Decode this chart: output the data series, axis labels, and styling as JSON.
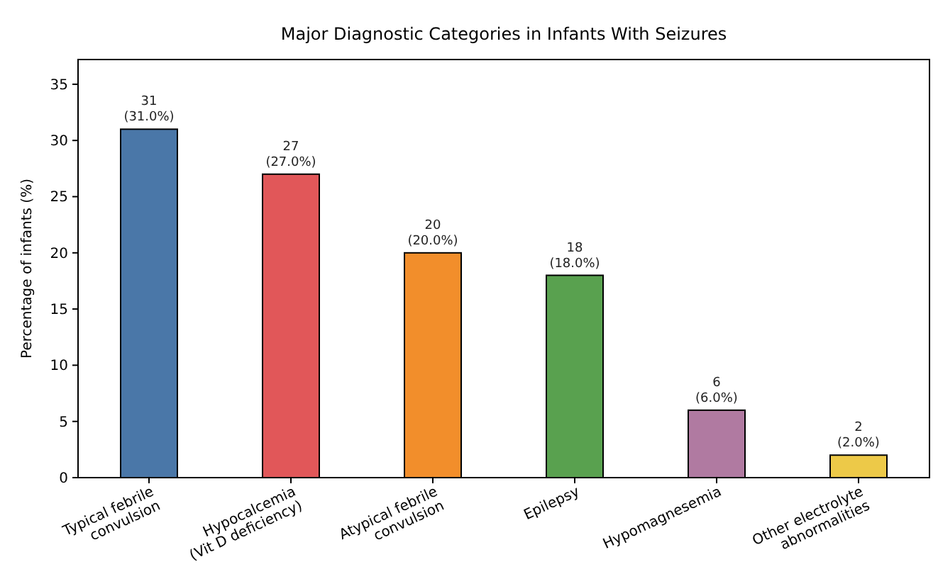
{
  "chart_data": {
    "type": "bar",
    "title": "Major Diagnostic Categories in Infants With Seizures",
    "ylabel": "Percentage of infants (%)",
    "categories": [
      "Typical febrile\nconvulsion",
      "Hypocalcemia\n(Vit D deficiency)",
      "Atypical febrile\nconvulsion",
      "Epilepsy",
      "Hypomagnesemia",
      "Other electrolyte\nabnormalities"
    ],
    "values": [
      31,
      27,
      20,
      18,
      6,
      2
    ],
    "colors": [
      "#4a77a8",
      "#e15759",
      "#f28e2b",
      "#59a14f",
      "#b07aa1",
      "#edc948"
    ],
    "value_labels": [
      "31\n(31.0%)",
      "27\n(27.0%)",
      "20\n(20.0%)",
      "18\n(18.0%)",
      "6\n(6.0%)",
      "2\n(2.0%)"
    ],
    "ylim": [
      0,
      37.2
    ],
    "yticks": [
      0,
      5,
      10,
      15,
      20,
      25,
      30,
      35
    ],
    "grid": false
  }
}
